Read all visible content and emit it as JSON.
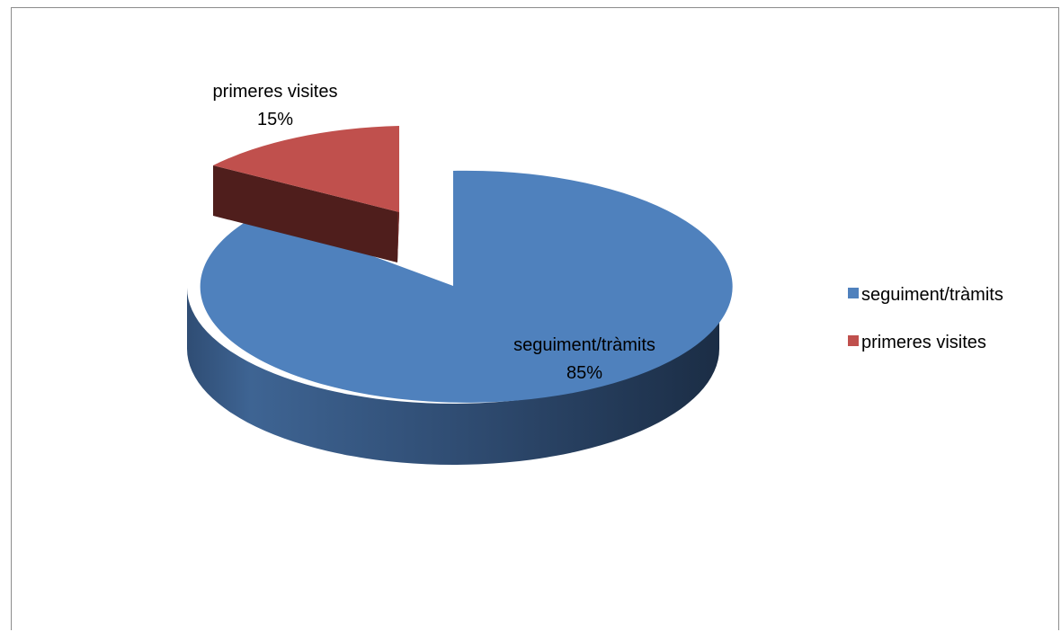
{
  "chart_data": {
    "type": "pie",
    "style": "3d-exploded",
    "slices": [
      {
        "label": "seguiment/tràmits",
        "value": 85,
        "display": "85%",
        "color": "#4f81bd"
      },
      {
        "label": "primeres visites",
        "value": 15,
        "display": "15%",
        "color": "#c0504d"
      }
    ],
    "legend_position": "right"
  }
}
